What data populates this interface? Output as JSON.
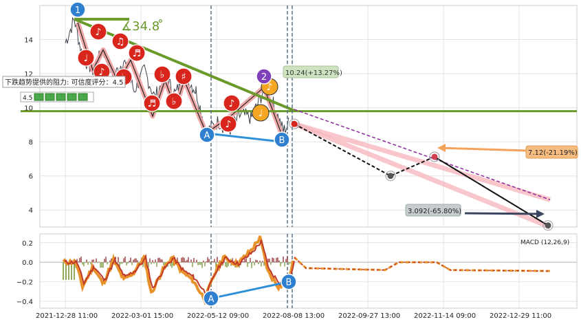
{
  "chart_data": [
    {
      "type": "line",
      "panel": "price",
      "y_ticks": [
        4,
        6,
        8,
        10,
        12,
        14
      ],
      "ylim": [
        3.0,
        16.0
      ],
      "grid": true,
      "angle_label": "∡34.8 ̊",
      "resistance_label": "下跌趋势提供的阻力: 可信度评分：4.5",
      "score_label": "4.5",
      "wave_points": [
        {
          "label": "1",
          "color": "#2e7fd0"
        },
        {
          "label": "2",
          "color": "#7f3fb8"
        },
        {
          "label": "A",
          "color": "#2e7fd0"
        },
        {
          "label": "B",
          "color": "#2e7fd0"
        }
      ],
      "annotations": [
        {
          "text": "10.24(+13.27%)",
          "value": 10.24,
          "change_pct": 13.27
        },
        {
          "text": "7.12(-21.19%)",
          "value": 7.12,
          "change_pct": -21.19
        },
        {
          "text": "3.092(-65.80%)",
          "value": 3.092,
          "change_pct": -65.8
        }
      ],
      "projection_points": [
        {
          "date": "2022-09-01",
          "value": 9.05
        },
        {
          "date": "2022-10-26",
          "value": 6.0
        },
        {
          "date": "2022-12-01",
          "value": 7.12
        },
        {
          "date": "2023-01-20",
          "value": 3.092
        }
      ],
      "colors": {
        "trend_green": "#6a9a2a",
        "price": "#333333",
        "wave": "#f0a0a0",
        "music_red": "#d9261c",
        "music_orange": "#f5a623"
      }
    },
    {
      "type": "line",
      "panel": "macd",
      "title": "MACD (12,26,9)",
      "y_ticks": [
        "0.2",
        "0.0",
        "−0.2",
        "−0.4"
      ],
      "ylim": [
        -0.47,
        0.29
      ],
      "x_ticks": [
        "2021-12-28 11:00",
        "2022-03-01 15:00",
        "2022-05-12 09:00",
        "2022-08-08 13:00",
        "2022-09-27 13:00",
        "2022-11-14 09:00",
        "2022-12-29 11:00"
      ],
      "labels": [
        "A",
        "B"
      ],
      "colors": {
        "macd": "#e8922a",
        "signal": "#c0392b",
        "hist_up": "#8b1a1a",
        "hist_down": "#6b8e23"
      }
    }
  ]
}
